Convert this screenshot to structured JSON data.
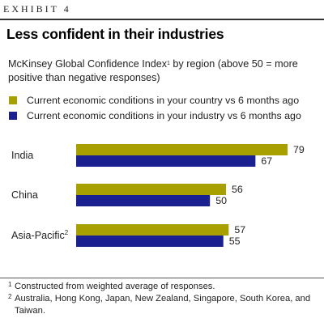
{
  "header": {
    "exhibit": "EXHIBIT 4",
    "title": "Less confident in their industries",
    "subtitle_main": "McKinsey Global Confidence Index",
    "subtitle_sup": "1",
    "subtitle_rest": " by region (above 50 = more positive than negative responses)"
  },
  "colors": {
    "series1": "#a8a000",
    "series2": "#1a2090"
  },
  "chart_data": {
    "type": "bar",
    "orientation": "horizontal",
    "categories": [
      "India",
      "China",
      "Asia-Pacific"
    ],
    "category_superscripts": [
      "",
      "",
      "2"
    ],
    "series": [
      {
        "name": "Current economic conditions in your country vs 6 months ago",
        "values": [
          79,
          56,
          57
        ]
      },
      {
        "name": "Current economic conditions in your industry vs 6 months ago",
        "values": [
          67,
          50,
          55
        ]
      }
    ],
    "value_axis_range": [
      0,
      79
    ]
  },
  "footnotes": [
    {
      "mark": "1",
      "text": "Constructed from weighted average of responses."
    },
    {
      "mark": "2",
      "text": "Australia, Hong Kong, Japan, New Zealand, Singapore, South Korea, and Taiwan."
    }
  ]
}
